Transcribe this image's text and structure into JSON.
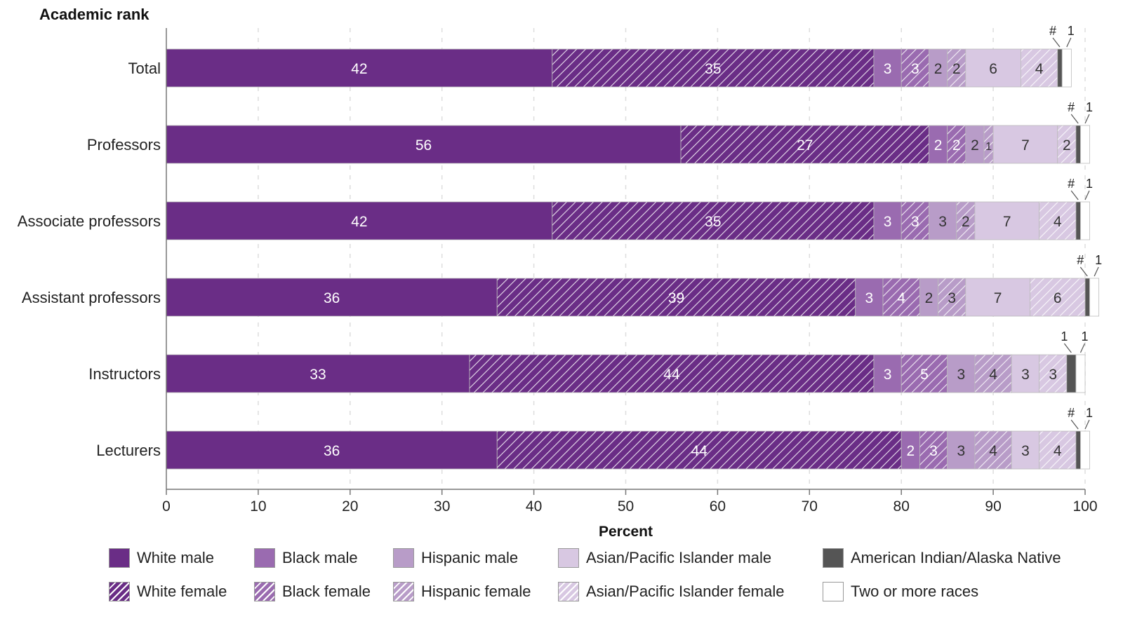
{
  "chart_data": {
    "type": "bar",
    "orientation": "horizontal",
    "stacked": true,
    "y_axis_title": "Academic rank",
    "xlabel": "Percent",
    "xlim": [
      0,
      100
    ],
    "xticks": [
      "0",
      "10",
      "20",
      "30",
      "40",
      "50",
      "60",
      "70",
      "80",
      "90",
      "100"
    ],
    "grid": "vertical dashed",
    "categories": [
      "Total",
      "Professors",
      "Associate professors",
      "Assistant professors",
      "Instructors",
      "Lecturers"
    ],
    "series": [
      {
        "name": "White male",
        "values": [
          42,
          56,
          42,
          36,
          33,
          36
        ],
        "labels": [
          "42",
          "56",
          "42",
          "36",
          "33",
          "36"
        ],
        "color": "#6a2d86",
        "pattern": false
      },
      {
        "name": "White female",
        "values": [
          35,
          27,
          35,
          39,
          44,
          44
        ],
        "labels": [
          "35",
          "27",
          "35",
          "39",
          "44",
          "44"
        ],
        "color": "#6a2d86",
        "pattern": true
      },
      {
        "name": "Black male",
        "values": [
          3,
          2,
          3,
          3,
          3,
          2
        ],
        "labels": [
          "3",
          "2",
          "3",
          "3",
          "3",
          "2"
        ],
        "color": "#9a6bb0",
        "pattern": false
      },
      {
        "name": "Black female",
        "values": [
          3,
          2,
          3,
          4,
          5,
          3
        ],
        "labels": [
          "3",
          "2",
          "3",
          "4",
          "5",
          "3"
        ],
        "color": "#9a6bb0",
        "pattern": true
      },
      {
        "name": "Hispanic male",
        "values": [
          2,
          2,
          3,
          2,
          3,
          3
        ],
        "labels": [
          "2",
          "2",
          "3",
          "2",
          "3",
          "3"
        ],
        "color": "#b89cc8",
        "pattern": false
      },
      {
        "name": "Hispanic female",
        "values": [
          2,
          1,
          2,
          3,
          4,
          4
        ],
        "labels": [
          "2",
          "1",
          "2",
          "3",
          "4",
          "4"
        ],
        "color": "#b89cc8",
        "pattern": true
      },
      {
        "name": "Asian/Pacific Islander male",
        "values": [
          6,
          7,
          7,
          7,
          3,
          3
        ],
        "labels": [
          "6",
          "7",
          "7",
          "7",
          "3",
          "3"
        ],
        "color": "#d8c8e2",
        "pattern": false
      },
      {
        "name": "Asian/Pacific Islander female",
        "values": [
          4,
          2,
          4,
          6,
          3,
          4
        ],
        "labels": [
          "4",
          "2",
          "4",
          "6",
          "3",
          "4"
        ],
        "color": "#d8c8e2",
        "pattern": true
      },
      {
        "name": "American Indian/Alaska Native",
        "values": [
          0.5,
          0.5,
          0.5,
          0.5,
          1,
          0.5
        ],
        "labels": [
          "#",
          "#",
          "#",
          "#",
          "1",
          "#"
        ],
        "color": "#555555",
        "pattern": false
      },
      {
        "name": "Two or more races",
        "values": [
          1,
          1,
          1,
          1,
          1,
          1
        ],
        "labels": [
          "1",
          "1",
          "1",
          "1",
          "1",
          "1"
        ],
        "color": "#ffffff",
        "pattern": false
      }
    ],
    "legend": "bottom"
  }
}
